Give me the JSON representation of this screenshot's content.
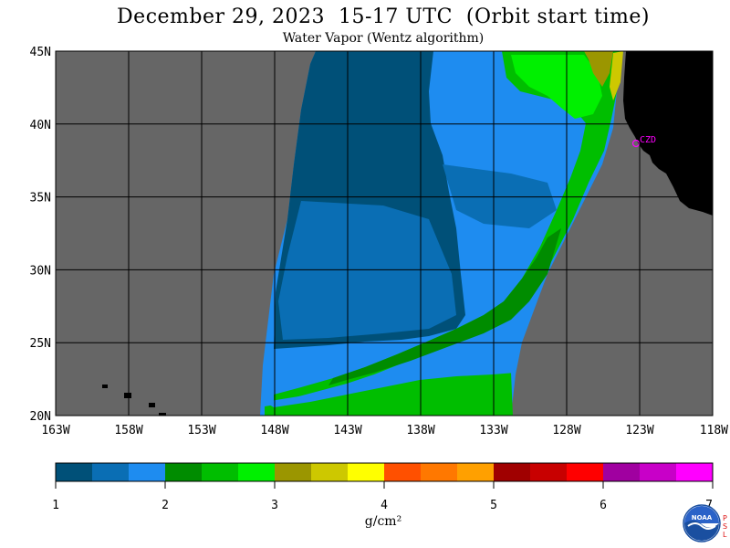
{
  "header": {
    "title": "December 29, 2023  15-17 UTC  (Orbit start time)",
    "subtitle": "Water Vapor (Wentz algorithm)"
  },
  "map": {
    "lat_labels": [
      "45N",
      "40N",
      "35N",
      "30N",
      "25N",
      "20N"
    ],
    "lon_labels": [
      "163W",
      "158W",
      "153W",
      "148W",
      "143W",
      "138W",
      "133W",
      "128W",
      "123W",
      "118W"
    ],
    "station_label": "CZD",
    "colors": {
      "no_data": "#666666",
      "land": "#000000",
      "grid": "#000000",
      "station": "#ff00ff"
    }
  },
  "colorbar": {
    "ticks": [
      "1",
      "2",
      "3",
      "4",
      "5",
      "6",
      "7"
    ],
    "unit": "g/cm²",
    "colors": [
      "#005078",
      "#0a6eb4",
      "#1e8cf0",
      "#008c00",
      "#00be00",
      "#00f000",
      "#9b9600",
      "#cdc800",
      "#ffff00",
      "#ff5000",
      "#ff7800",
      "#ffa000",
      "#a00000",
      "#c80000",
      "#ff0000",
      "#a000a0",
      "#c800c8",
      "#ff00ff"
    ]
  },
  "logo": {
    "text": "NOAA",
    "psl": [
      "P",
      "S",
      "L"
    ]
  }
}
